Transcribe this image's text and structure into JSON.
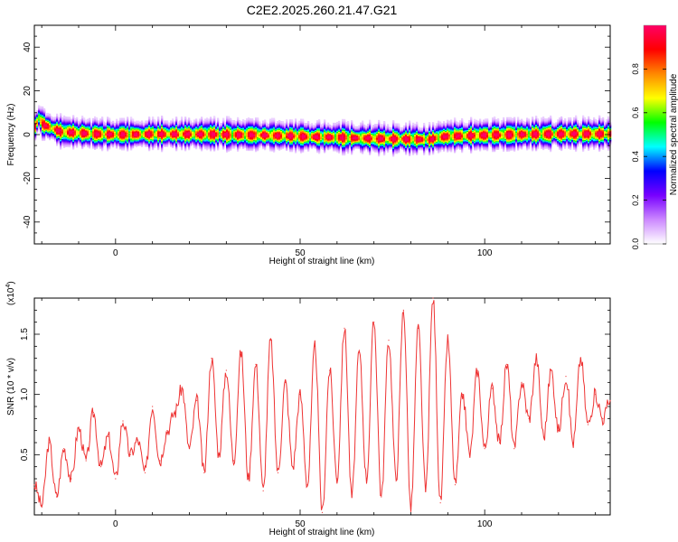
{
  "title": "C2E2.2025.260.21.47.G21",
  "colorbar": {
    "label": "Normalized spectral amplitude",
    "ticks": [
      "0.0",
      "0.2",
      "0.4",
      "0.6",
      "0.8"
    ],
    "tick_values": [
      0.0,
      0.2,
      0.4,
      0.6,
      0.8
    ],
    "range": [
      0,
      1
    ],
    "colormap": [
      "#ffffff",
      "#cc88ff",
      "#7700ff",
      "#0000ff",
      "#00ffff",
      "#00ff00",
      "#ffff00",
      "#ff8800",
      "#ff0000",
      "#ff0066"
    ]
  },
  "chart_data": [
    {
      "type": "heatmap",
      "title": "C2E2.2025.260.21.47.G21",
      "xlabel": "Height of straight line (km)",
      "ylabel": "Frequency (Hz)",
      "xlim": [
        -22,
        134
      ],
      "ylim": [
        -50,
        50
      ],
      "xticks": [
        0,
        50,
        100
      ],
      "yticks": [
        -40,
        -20,
        0,
        20,
        40
      ],
      "grid": false,
      "description_values": {
        "ridge_frequency_hz": [
          [
            -22,
            4
          ],
          [
            -21,
            8
          ],
          [
            -20,
            5
          ],
          [
            -15,
            1.5
          ],
          [
            -5,
            0.5
          ],
          [
            0,
            0.3
          ],
          [
            10,
            0.5
          ],
          [
            25,
            0.4
          ],
          [
            40,
            0
          ],
          [
            55,
            -0.8
          ],
          [
            70,
            -1.5
          ],
          [
            85,
            -2
          ],
          [
            87,
            -1
          ],
          [
            90,
            -0.5
          ],
          [
            100,
            0
          ],
          [
            115,
            0.5
          ],
          [
            125,
            0.6
          ],
          [
            134,
            0.6
          ]
        ]
      }
    },
    {
      "type": "line",
      "xlabel": "Height of straight line (km)",
      "ylabel": "SNR (10 * v/v)",
      "y_multiplier": "(x10",
      "y_multiplier_exp": "4",
      "xlim": [
        -22,
        134
      ],
      "ylim": [
        0,
        1.8
      ],
      "xticks": [
        0,
        50,
        100
      ],
      "yticks": [
        0.5,
        1.0,
        1.5
      ],
      "grid": false,
      "color": "#ee3333",
      "x": [
        -22,
        -20,
        -18,
        -16,
        -14,
        -12,
        -10,
        -8,
        -6,
        -4,
        -2,
        0,
        2,
        4,
        6,
        8,
        10,
        12,
        14,
        16,
        18,
        20,
        22,
        24,
        26,
        28,
        30,
        32,
        34,
        36,
        38,
        40,
        42,
        44,
        46,
        48,
        50,
        52,
        54,
        56,
        58,
        60,
        62,
        64,
        66,
        68,
        70,
        72,
        74,
        76,
        78,
        80,
        82,
        84,
        86,
        88,
        90,
        92,
        94,
        96,
        98,
        100,
        102,
        104,
        106,
        108,
        110,
        112,
        114,
        116,
        118,
        120,
        122,
        124,
        126,
        128,
        130,
        132,
        134
      ],
      "y": [
        0.25,
        0.08,
        0.6,
        0.15,
        0.55,
        0.3,
        0.72,
        0.45,
        0.85,
        0.4,
        0.65,
        0.3,
        0.78,
        0.5,
        0.62,
        0.35,
        0.9,
        0.45,
        0.7,
        0.85,
        1.05,
        0.55,
        0.95,
        0.35,
        1.3,
        0.5,
        1.2,
        0.45,
        1.35,
        0.3,
        1.25,
        0.2,
        1.45,
        0.35,
        1.1,
        0.4,
        1.0,
        0.25,
        1.4,
        0.02,
        1.2,
        0.3,
        1.55,
        0.15,
        1.35,
        0.3,
        1.6,
        0.15,
        1.45,
        0.3,
        1.7,
        0.05,
        1.55,
        0.2,
        1.8,
        0.1,
        1.45,
        0.25,
        1.0,
        0.5,
        1.2,
        0.55,
        1.05,
        0.6,
        1.25,
        0.55,
        1.1,
        0.8,
        1.3,
        0.65,
        1.2,
        0.7,
        1.15,
        0.6,
        1.3,
        0.75,
        1.0,
        0.8,
        0.95
      ]
    }
  ]
}
